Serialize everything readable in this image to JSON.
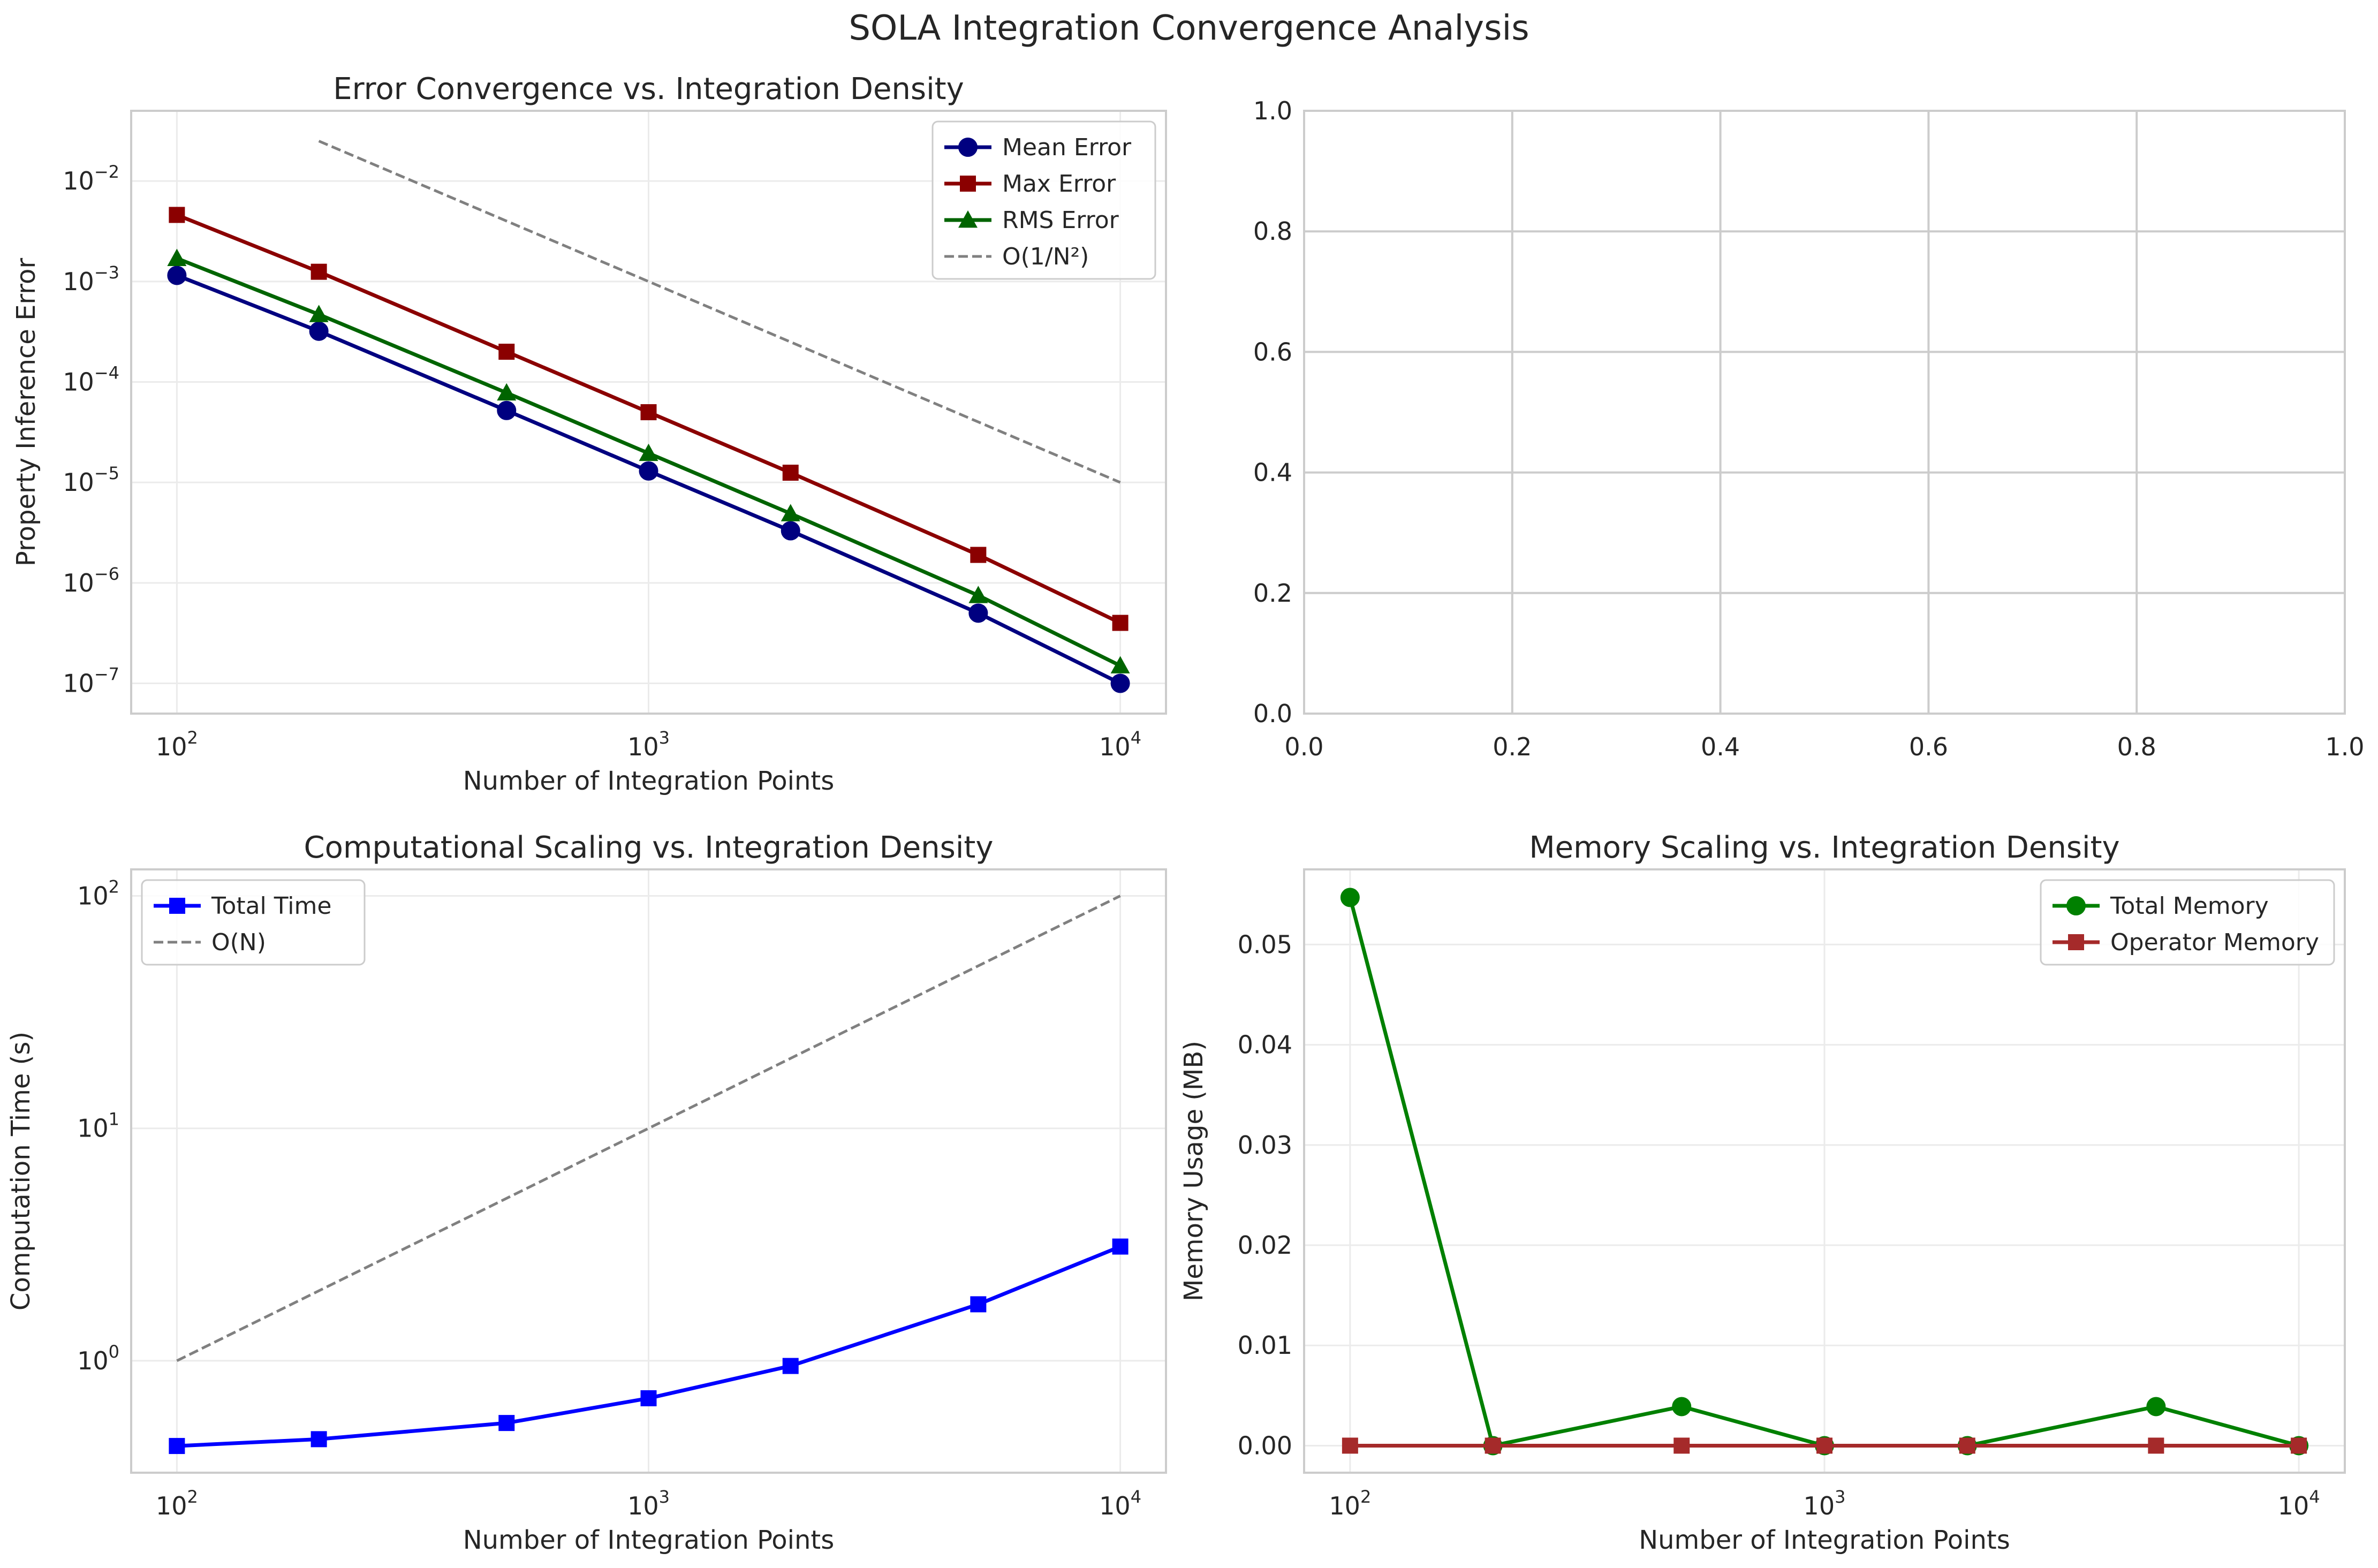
{
  "figure": {
    "suptitle": "SOLA Integration Convergence Analysis"
  },
  "colors": {
    "grid": "#ebebeb",
    "grid_dense": "#cccccc",
    "spine": "#cccccc",
    "text": "#262626",
    "mean": "#000080",
    "max": "#8b0000",
    "rms": "#006400",
    "ref": "#808080",
    "time": "#0000ff",
    "total_mem": "#008000",
    "op_mem": "#a52a2a"
  },
  "chart_data": [
    {
      "id": "error",
      "type": "line",
      "title": "Error Convergence vs. Integration Density",
      "xlabel": "Number of Integration Points",
      "ylabel": "Property Inference Error",
      "xscale": "log",
      "yscale": "log",
      "xlim": [
        80,
        12500
      ],
      "ylim": [
        5e-08,
        0.05
      ],
      "xticks": [
        100,
        1000,
        10000
      ],
      "xtick_labels": [
        [
          "10",
          "2"
        ],
        [
          "10",
          "3"
        ],
        [
          "10",
          "4"
        ]
      ],
      "yticks": [
        1e-07,
        1e-06,
        1e-05,
        0.0001,
        0.001,
        0.01
      ],
      "ytick_labels": [
        [
          "10",
          "−7"
        ],
        [
          "10",
          "−6"
        ],
        [
          "10",
          "−5"
        ],
        [
          "10",
          "−4"
        ],
        [
          "10",
          "−3"
        ],
        [
          "10",
          "−2"
        ]
      ],
      "grid": true,
      "legend": "upper right",
      "series": [
        {
          "name": "Mean Error",
          "marker": "circle",
          "color_key": "mean",
          "x": [
            100,
            200,
            500,
            1000,
            2000,
            5000,
            10000
          ],
          "y": [
            0.00115,
            0.00032,
            5.2e-05,
            1.3e-05,
            3.3e-06,
            5e-07,
            1e-07
          ]
        },
        {
          "name": "Max Error",
          "marker": "square",
          "color_key": "max",
          "x": [
            100,
            200,
            500,
            1000,
            2000,
            5000,
            10000
          ],
          "y": [
            0.0046,
            0.00125,
            0.0002,
            5e-05,
            1.25e-05,
            1.9e-06,
            4e-07
          ]
        },
        {
          "name": "RMS Error",
          "marker": "triangle",
          "color_key": "rms",
          "x": [
            100,
            200,
            500,
            1000,
            2000,
            5000,
            10000
          ],
          "y": [
            0.0017,
            0.00047,
            7.8e-05,
            1.95e-05,
            4.9e-06,
            7.5e-07,
            1.5e-07
          ]
        },
        {
          "name": "O(1/N²)",
          "marker": "none",
          "dashed": true,
          "color_key": "ref",
          "x": [
            200,
            500,
            1000,
            2000,
            5000,
            10000
          ],
          "y": [
            0.025,
            0.004,
            0.001,
            0.00025,
            4e-05,
            1e-05
          ]
        }
      ]
    },
    {
      "id": "empty",
      "type": "line",
      "title": "",
      "xlabel": "",
      "ylabel": "",
      "xscale": "linear",
      "yscale": "linear",
      "xlim": [
        0,
        1
      ],
      "ylim": [
        0,
        1
      ],
      "xticks": [
        0,
        0.2,
        0.4,
        0.6,
        0.8,
        1.0
      ],
      "xtick_labels": [
        [
          "0.0"
        ],
        [
          "0.2"
        ],
        [
          "0.4"
        ],
        [
          "0.6"
        ],
        [
          "0.8"
        ],
        [
          "1.0"
        ]
      ],
      "yticks": [
        0,
        0.2,
        0.4,
        0.6,
        0.8,
        1.0
      ],
      "ytick_labels": [
        [
          "0.0"
        ],
        [
          "0.2"
        ],
        [
          "0.4"
        ],
        [
          "0.6"
        ],
        [
          "0.8"
        ],
        [
          "1.0"
        ]
      ],
      "grid": true,
      "grid_style": "dense",
      "series": []
    },
    {
      "id": "time",
      "type": "line",
      "title": "Computational Scaling vs. Integration Density",
      "xlabel": "Number of Integration Points",
      "ylabel": "Computation Time (s)",
      "xscale": "log",
      "yscale": "log",
      "xlim": [
        80,
        12500
      ],
      "ylim": [
        0.33,
        130
      ],
      "xticks": [
        100,
        1000,
        10000
      ],
      "xtick_labels": [
        [
          "10",
          "2"
        ],
        [
          "10",
          "3"
        ],
        [
          "10",
          "4"
        ]
      ],
      "yticks": [
        1,
        10,
        100
      ],
      "ytick_labels": [
        [
          "10",
          "0"
        ],
        [
          "10",
          "1"
        ],
        [
          "10",
          "2"
        ]
      ],
      "grid": true,
      "legend": "upper left",
      "series": [
        {
          "name": "Total Time",
          "marker": "square",
          "color_key": "time",
          "x": [
            100,
            200,
            500,
            1000,
            2000,
            5000,
            10000
          ],
          "y": [
            0.43,
            0.46,
            0.54,
            0.69,
            0.95,
            1.75,
            3.1
          ]
        },
        {
          "name": "O(N)",
          "marker": "none",
          "dashed": true,
          "color_key": "ref",
          "x": [
            100,
            10000
          ],
          "y": [
            1,
            100
          ]
        }
      ]
    },
    {
      "id": "memory",
      "type": "line",
      "title": "Memory Scaling vs. Integration Density",
      "xlabel": "Number of Integration Points",
      "ylabel": "Memory Usage (MB)",
      "xscale": "log",
      "yscale": "linear",
      "xlim": [
        80,
        12500
      ],
      "ylim": [
        -0.0027,
        0.0575
      ],
      "xticks": [
        100,
        1000,
        10000
      ],
      "xtick_labels": [
        [
          "10",
          "2"
        ],
        [
          "10",
          "3"
        ],
        [
          "10",
          "4"
        ]
      ],
      "yticks": [
        0,
        0.01,
        0.02,
        0.03,
        0.04,
        0.05
      ],
      "ytick_labels": [
        [
          "0.00"
        ],
        [
          "0.01"
        ],
        [
          "0.02"
        ],
        [
          "0.03"
        ],
        [
          "0.04"
        ],
        [
          "0.05"
        ]
      ],
      "grid": true,
      "legend": "upper right",
      "series": [
        {
          "name": "Total Memory",
          "marker": "circle",
          "color_key": "total_mem",
          "x": [
            100,
            200,
            500,
            1000,
            2000,
            5000,
            10000
          ],
          "y": [
            0.0547,
            0.0,
            0.0039,
            0.0,
            0.0,
            0.0039,
            0.0
          ]
        },
        {
          "name": "Operator Memory",
          "marker": "square",
          "color_key": "op_mem",
          "x": [
            100,
            200,
            500,
            1000,
            2000,
            5000,
            10000
          ],
          "y": [
            0,
            0,
            0,
            0,
            0,
            0,
            0
          ]
        }
      ]
    }
  ]
}
